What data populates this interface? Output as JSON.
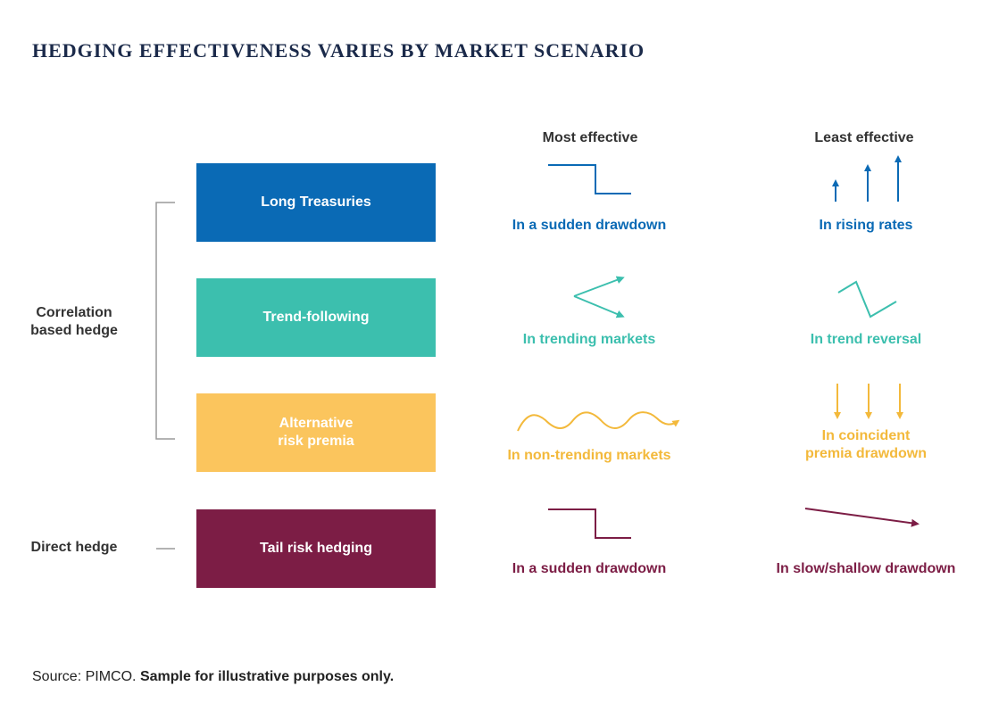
{
  "title": "HEDGING EFFECTIVENESS VARIES BY MARKET SCENARIO",
  "columns": {
    "most": "Most effective",
    "least": "Least effective"
  },
  "groups": {
    "correlation": "Correlation\nbased hedge",
    "direct": "Direct hedge"
  },
  "rows": [
    {
      "label": "Long Treasuries",
      "color": "#0a6ab5",
      "most": "In a sudden drawdown",
      "least": "In rising rates",
      "most_icon": "step-down-icon",
      "least_icon": "rising-arrows-icon"
    },
    {
      "label": "Trend-following",
      "color": "#3cbfae",
      "most": "In trending markets",
      "least": "In trend reversal",
      "most_icon": "diverging-arrows-icon",
      "least_icon": "zigzag-reversal-icon"
    },
    {
      "label": "Alternative\nrisk premia",
      "color": "#fbc55d",
      "text_color": "#f3b93b",
      "most": "In non-trending markets",
      "least": "In coincident\npremia drawdown",
      "most_icon": "wave-arrow-icon",
      "least_icon": "falling-arrows-icon"
    },
    {
      "label": "Tail risk hedging",
      "color": "#7c1d45",
      "most": "In a sudden drawdown",
      "least": "In slow/shallow drawdown",
      "most_icon": "step-down-icon",
      "least_icon": "gentle-decline-arrow-icon"
    }
  ],
  "source": {
    "prefix": "Source: PIMCO.",
    "emphasis": "Sample for illustrative purposes only."
  }
}
